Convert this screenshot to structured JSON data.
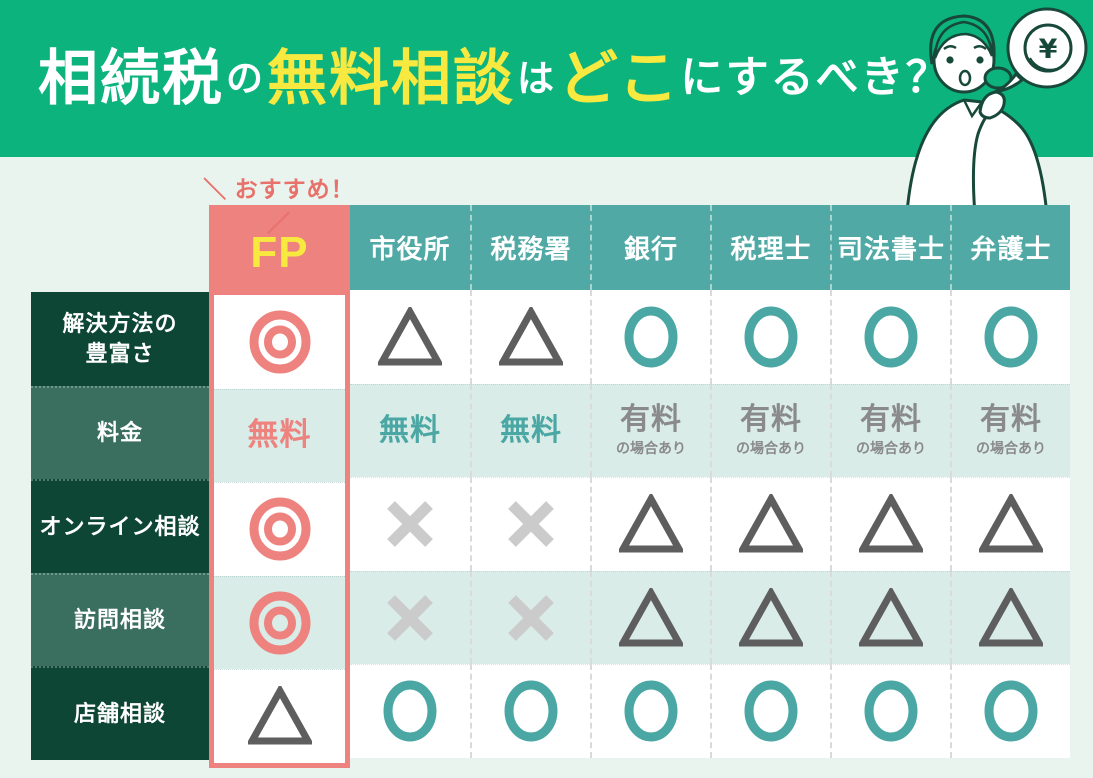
{
  "header": {
    "title_parts": [
      {
        "text": "相続税"
      },
      {
        "text": "の"
      },
      {
        "text": "無料相談"
      },
      {
        "text": "は"
      },
      {
        "text": "どこ"
      },
      {
        "text": "にするべき？"
      }
    ]
  },
  "illustration": {
    "woman": "thinking-woman-with-speech-bubble",
    "coin_symbol": "¥"
  },
  "recommend_label": "＼ おすすめ！ ／",
  "table": {
    "columns": [
      "FP",
      "市役所",
      "税務署",
      "銀行",
      "税理士",
      "司法書士",
      "弁護士"
    ],
    "rows": [
      {
        "label": "解決方法の\n豊富さ",
        "cells": [
          {
            "symbol": "double-circle"
          },
          {
            "symbol": "triangle"
          },
          {
            "symbol": "triangle"
          },
          {
            "symbol": "circle"
          },
          {
            "symbol": "circle"
          },
          {
            "symbol": "circle"
          },
          {
            "symbol": "circle"
          }
        ]
      },
      {
        "label": "料金",
        "cells": [
          {
            "text": "無料",
            "color": "salmon"
          },
          {
            "text": "無料",
            "color": "teal"
          },
          {
            "text": "無料",
            "color": "teal"
          },
          {
            "text": "有料",
            "sub": "の場合あり",
            "color": "gray"
          },
          {
            "text": "有料",
            "sub": "の場合あり",
            "color": "gray"
          },
          {
            "text": "有料",
            "sub": "の場合あり",
            "color": "gray"
          },
          {
            "text": "有料",
            "sub": "の場合あり",
            "color": "gray"
          }
        ]
      },
      {
        "label": "オンライン相談",
        "cells": [
          {
            "symbol": "double-circle"
          },
          {
            "symbol": "cross"
          },
          {
            "symbol": "cross"
          },
          {
            "symbol": "triangle"
          },
          {
            "symbol": "triangle"
          },
          {
            "symbol": "triangle"
          },
          {
            "symbol": "triangle"
          }
        ]
      },
      {
        "label": "訪問相談",
        "cells": [
          {
            "symbol": "double-circle"
          },
          {
            "symbol": "cross"
          },
          {
            "symbol": "cross"
          },
          {
            "symbol": "triangle"
          },
          {
            "symbol": "triangle"
          },
          {
            "symbol": "triangle"
          },
          {
            "symbol": "triangle"
          }
        ]
      },
      {
        "label": "店舗相談",
        "cells": [
          {
            "symbol": "triangle"
          },
          {
            "symbol": "circle"
          },
          {
            "symbol": "circle"
          },
          {
            "symbol": "circle"
          },
          {
            "symbol": "circle"
          },
          {
            "symbol": "circle"
          },
          {
            "symbol": "circle"
          }
        ]
      }
    ]
  },
  "colors": {
    "header_green": "#0cb37d",
    "page_bg": "#e9f4ee",
    "title_yellow": "#f8e941",
    "salmon": "#ed827e",
    "teal": "#4ba7a3",
    "teal_header": "#50a9a5",
    "dark_row": "#0d4634",
    "mid_row": "#3a6f60",
    "mint": "#d9ece8",
    "triangle_gray": "#5e5e5e",
    "cross_gray": "#cbcbcb",
    "paid_gray": "#8a8a8a",
    "outline_green": "#17483a"
  }
}
